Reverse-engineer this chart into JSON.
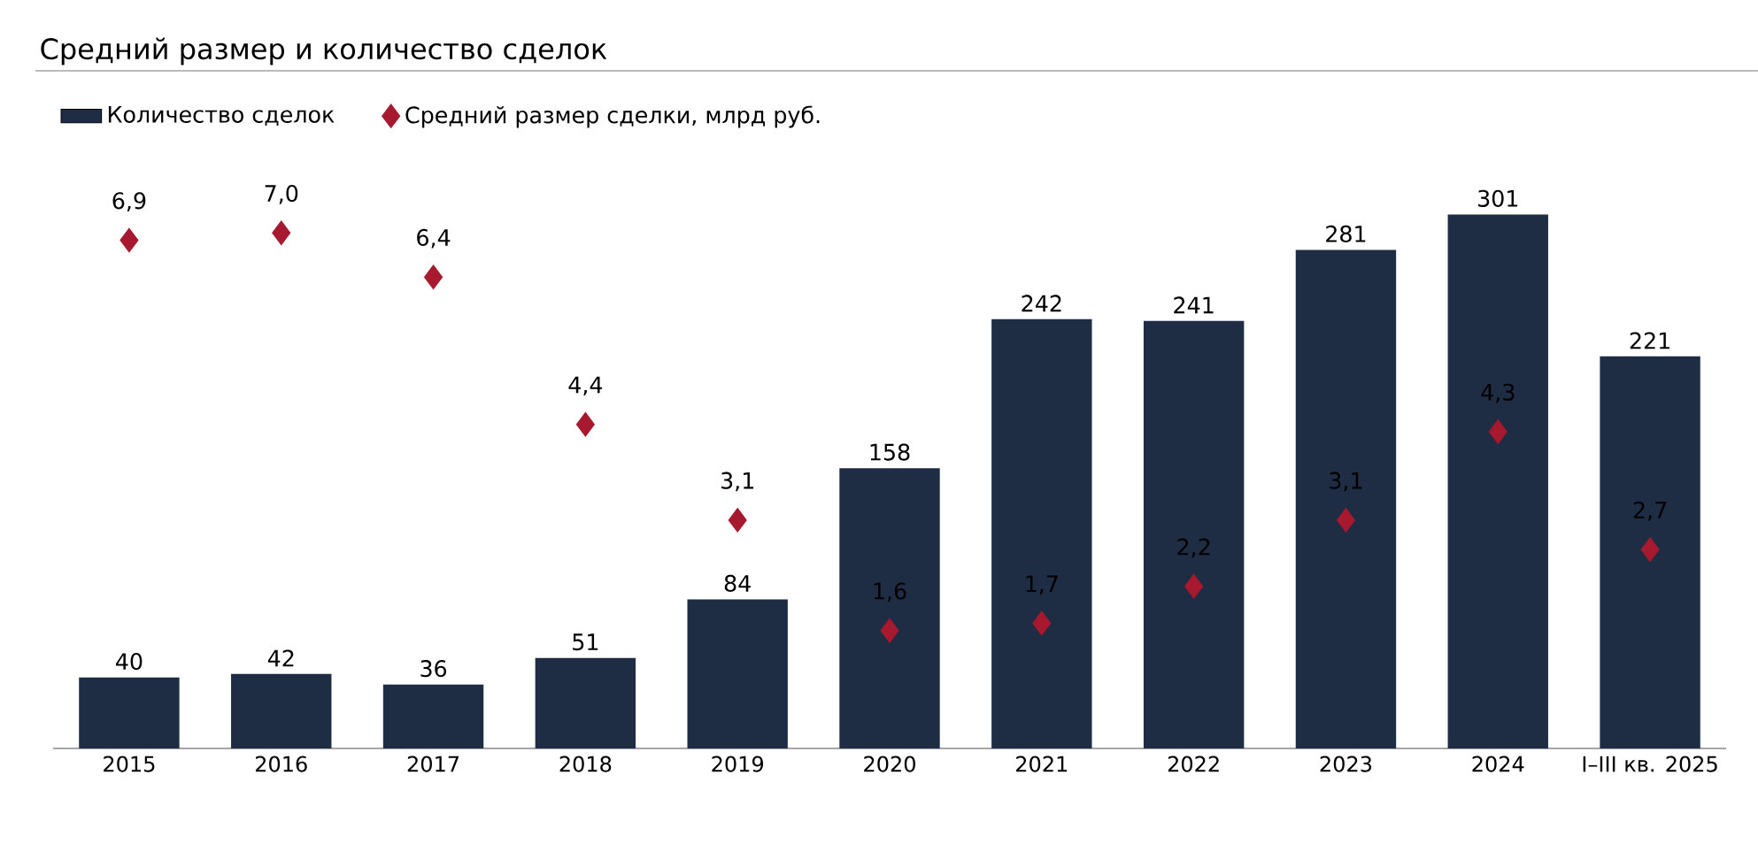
{
  "chart_data": {
    "type": "bar",
    "title": "Средний размер и количество сделок",
    "categories": [
      "2015",
      "2016",
      "2017",
      "2018",
      "2019",
      "2020",
      "2021",
      "2022",
      "2023",
      "2024",
      "I–III кв. 2025"
    ],
    "series": [
      {
        "name": "Количество сделок",
        "color": "#1f2d44",
        "values": [
          40,
          42,
          36,
          51,
          84,
          158,
          242,
          241,
          281,
          301,
          221
        ],
        "value_labels": [
          "40",
          "42",
          "36",
          "51",
          "84",
          "158",
          "242",
          "241",
          "281",
          "301",
          "221"
        ]
      },
      {
        "name": "Средний размер сделки, млрд руб.",
        "type": "scatter",
        "axis": "y2",
        "marker": "diamond",
        "color": "#a6192e",
        "values": [
          6.9,
          7.0,
          6.4,
          4.4,
          3.1,
          1.6,
          1.7,
          2.2,
          3.1,
          4.3,
          2.7
        ],
        "value_labels": [
          "6,9",
          "7,0",
          "6,4",
          "4,4",
          "3,1",
          "1,6",
          "1,7",
          "2,2",
          "3,1",
          "4,3",
          "2,7"
        ]
      }
    ],
    "tick_labels": "x",
    "grid": false,
    "legend": "top left"
  }
}
